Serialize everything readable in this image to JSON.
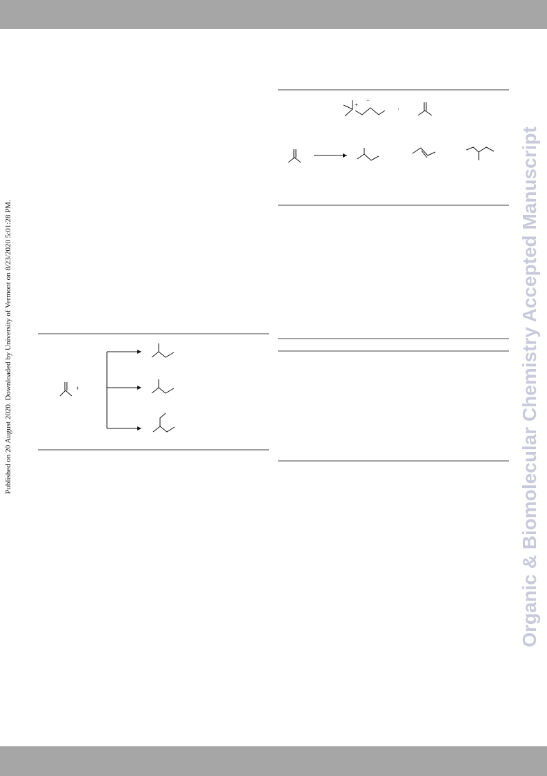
{
  "sidebar": {
    "published": "Published on 20 August 2020. Downloaded by University of Vermont on 8/23/2020 5:01:28 PM.",
    "journal": "Organic & Biomolecular Chemistry Accepted Manuscript"
  },
  "schemes": [
    {
      "labels": [
        "+",
        "−",
        "·"
      ]
    },
    {
      "labels": [
        "+"
      ]
    }
  ]
}
